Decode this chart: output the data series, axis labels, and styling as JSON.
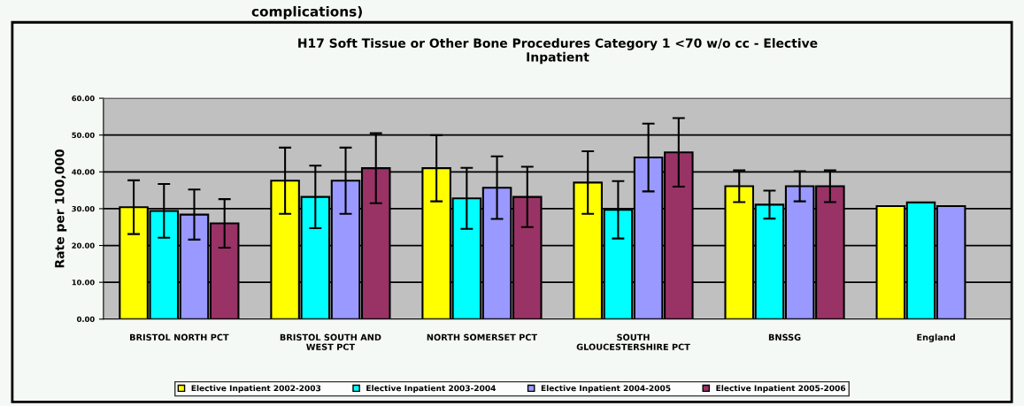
{
  "chart_data": {
    "type": "bar",
    "title": "H17 Soft Tissue or Other Bone Procedures Category 1 <70 w/o cc - Elective\nInpatient",
    "ylabel": "Rate per 100,000",
    "annotations": [
      "complications)"
    ],
    "categories": [
      "BRISTOL NORTH PCT",
      "BRISTOL SOUTH AND\nWEST PCT",
      "NORTH SOMERSET PCT",
      "SOUTH\nGLOUCESTERSHIRE PCT",
      "BNSSG",
      "England"
    ],
    "series": [
      {
        "name": "Elective Inpatient 2002-2003",
        "color": "#ffff00",
        "values": [
          30.4,
          37.6,
          41.0,
          37.1,
          36.1,
          30.7
        ],
        "errors": [
          7.3,
          9.0,
          9.0,
          8.5,
          4.3,
          null
        ]
      },
      {
        "name": "Elective Inpatient 2003-2004",
        "color": "#00ffff",
        "values": [
          29.4,
          33.2,
          32.8,
          29.7,
          31.1,
          31.7
        ],
        "errors": [
          7.3,
          8.5,
          8.3,
          7.8,
          3.8,
          null
        ]
      },
      {
        "name": "Elective Inpatient 2004-2005",
        "color": "#9999ff",
        "values": [
          28.4,
          37.6,
          35.7,
          43.9,
          36.1,
          30.7
        ],
        "errors": [
          6.8,
          9.0,
          8.5,
          9.2,
          4.1,
          null
        ]
      },
      {
        "name": "Elective Inpatient 2005-2006",
        "color": "#993366",
        "values": [
          26.0,
          41.0,
          33.2,
          45.3,
          36.1,
          null
        ],
        "errors": [
          6.6,
          9.5,
          8.2,
          9.3,
          4.3,
          null
        ]
      }
    ],
    "ylim": [
      0,
      60
    ],
    "yticks": [
      {
        "value": 0,
        "label": "0.00"
      },
      {
        "value": 10,
        "label": "10.00"
      },
      {
        "value": 20,
        "label": "20.00"
      },
      {
        "value": 30,
        "label": "30.00"
      },
      {
        "value": 40,
        "label": "40.00"
      },
      {
        "value": 50,
        "label": "50.00"
      },
      {
        "value": 60,
        "label": "60.00"
      }
    ],
    "grid": "y",
    "legend": "bottom"
  }
}
